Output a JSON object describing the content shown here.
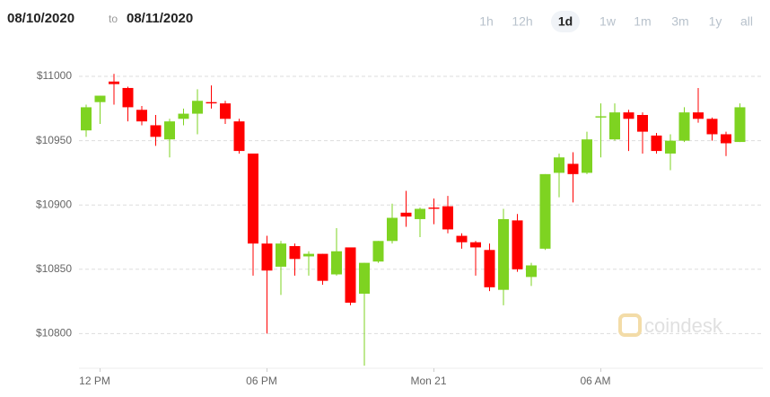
{
  "controls": {
    "from": "08/10/2020",
    "separator": "to",
    "to": "08/11/2020",
    "ranges": [
      "1h",
      "12h",
      "1d",
      "1w",
      "1m",
      "3m",
      "1y",
      "all"
    ],
    "selected": 2
  },
  "watermark": "coindesk",
  "chart_data": {
    "type": "candlestick",
    "categories": [
      null,
      "12 PM",
      null,
      null,
      null,
      null,
      null,
      null,
      null,
      null,
      null,
      null,
      null,
      "06 PM",
      null,
      null,
      null,
      null,
      null,
      null,
      null,
      null,
      null,
      null,
      null,
      "Mon 21",
      null,
      null,
      null,
      null,
      null,
      null,
      null,
      null,
      null,
      null,
      null,
      "06 AM",
      null,
      null,
      null,
      null,
      null,
      null,
      null,
      null,
      null,
      null
    ],
    "open": [
      10958,
      10980,
      10996,
      10991,
      10974,
      10962,
      10951,
      10967,
      10971,
      10980,
      10979,
      10965,
      10940,
      10870,
      10852,
      10868,
      10860,
      10862,
      10846,
      10867,
      10831,
      10856,
      10872,
      10894,
      10889,
      10898,
      10899,
      10876,
      10871,
      10865,
      10834,
      10888,
      10844,
      10866,
      10925,
      10932,
      10925,
      10968,
      10951,
      10972,
      10970,
      10954,
      10940,
      10950,
      10972,
      10967,
      10955,
      10949
    ],
    "high": [
      10978,
      10985,
      11002,
      10992,
      10977,
      10970,
      10967,
      10975,
      10990,
      10993,
      10981,
      10967,
      10940,
      10876,
      10872,
      10870,
      10864,
      10862,
      10882,
      10867,
      10855,
      10872,
      10901,
      10911,
      10898,
      10905,
      10907,
      10878,
      10872,
      10870,
      10897,
      10893,
      10855,
      10924,
      10940,
      10941,
      10957,
      10979,
      10979,
      10974,
      10972,
      10956,
      10955,
      10976,
      10991,
      10968,
      10957,
      10979
    ],
    "low": [
      10953,
      10963,
      10978,
      10965,
      10962,
      10946,
      10937,
      10962,
      10955,
      10975,
      10963,
      10940,
      10845,
      10800,
      10830,
      10845,
      10845,
      10838,
      10845,
      10822,
      10775,
      10855,
      10870,
      10883,
      10875,
      10885,
      10878,
      10866,
      10845,
      10833,
      10822,
      10848,
      10837,
      10865,
      10906,
      10902,
      10924,
      10937,
      10950,
      10942,
      10940,
      10940,
      10927,
      10949,
      10964,
      10950,
      10938,
      10949
    ],
    "close": [
      10976,
      10985,
      10994,
      10976,
      10965,
      10953,
      10965,
      10971,
      10981,
      10979,
      10967,
      10942,
      10870,
      10849,
      10870,
      10858,
      10862,
      10841,
      10864,
      10824,
      10855,
      10872,
      10890,
      10891,
      10897,
      10897,
      10881,
      10871,
      10867,
      10836,
      10889,
      10850,
      10853,
      10924,
      10937,
      10924,
      10951,
      10969,
      10972,
      10967,
      10957,
      10942,
      10950,
      10972,
      10967,
      10955,
      10948,
      10976
    ],
    "up_color": "#7ed321",
    "down_color": "#ff0000",
    "ylim": [
      10773,
      11021
    ],
    "yticks": [
      {
        "value": 10800,
        "label": "$10800"
      },
      {
        "value": 10850,
        "label": "$10850"
      },
      {
        "value": 10900,
        "label": "$10900"
      },
      {
        "value": 10950,
        "label": "$10950"
      },
      {
        "value": 11000,
        "label": "$11000"
      }
    ],
    "grid": true
  }
}
